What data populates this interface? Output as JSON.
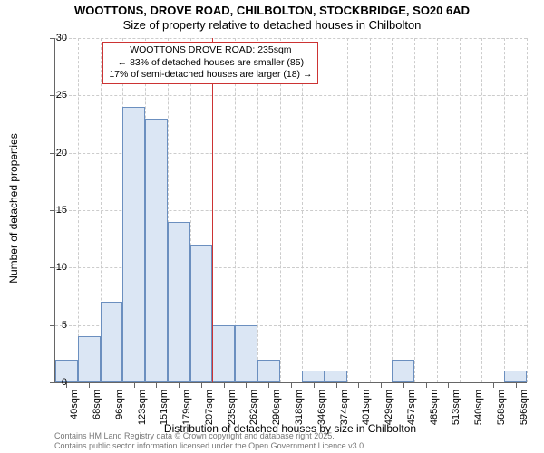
{
  "title_main": "WOOTTONS, DROVE ROAD, CHILBOLTON, STOCKBRIDGE, SO20 6AD",
  "title_sub": "Size of property relative to detached houses in Chilbolton",
  "y_axis_label": "Number of detached properties",
  "x_axis_label": "Distribution of detached houses by size in Chilbolton",
  "histogram": {
    "type": "histogram",
    "categories": [
      "40sqm",
      "68sqm",
      "96sqm",
      "123sqm",
      "151sqm",
      "179sqm",
      "207sqm",
      "235sqm",
      "262sqm",
      "290sqm",
      "318sqm",
      "346sqm",
      "374sqm",
      "401sqm",
      "429sqm",
      "457sqm",
      "485sqm",
      "513sqm",
      "540sqm",
      "568sqm",
      "596sqm"
    ],
    "values": [
      2,
      4,
      7,
      24,
      23,
      14,
      12,
      5,
      5,
      2,
      0,
      1,
      1,
      0,
      0,
      2,
      0,
      0,
      0,
      0,
      1
    ],
    "bar_color": "#dbe6f4",
    "bar_border_color": "#6b8fbf",
    "ylim": [
      0,
      30
    ],
    "ytick_step": 5,
    "grid_color": "#cccccc",
    "background_color": "#ffffff",
    "axis_color": "#666666"
  },
  "reference": {
    "position_category_index": 7,
    "line_color": "#cc3333",
    "box_border_color": "#cc3333",
    "line1": "WOOTTONS DROVE ROAD: 235sqm",
    "line2": "← 83% of detached houses are smaller (85)",
    "line3": "17% of semi-detached houses are larger (18) →"
  },
  "footer_line1": "Contains HM Land Registry data © Crown copyright and database right 2025.",
  "footer_line2": "Contains public sector information licensed under the Open Government Licence v3.0."
}
